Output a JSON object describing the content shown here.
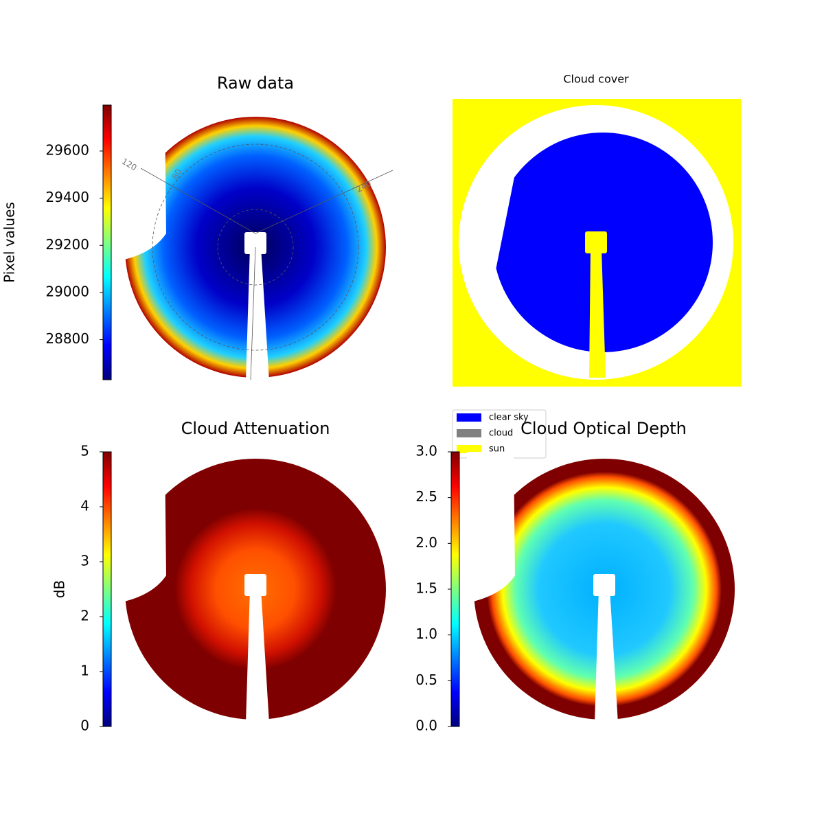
{
  "chart_data": [
    {
      "type": "image",
      "title": "Raw data",
      "colorbar_label": "Pixel values",
      "colormap": "jet",
      "clim": [
        28630,
        29795
      ],
      "cticks": [
        28800,
        29000,
        29200,
        29400,
        29600
      ],
      "annotations": [
        120,
        80,
        240
      ]
    },
    {
      "type": "image",
      "title": "Cloud cover",
      "legend": [
        {
          "name": "clear sky",
          "color": "#0000ff"
        },
        {
          "name": "cloud",
          "color": "#808080"
        },
        {
          "name": "sun",
          "color": "#ffff00"
        }
      ]
    },
    {
      "type": "image",
      "title": "Cloud Attenuation",
      "colorbar_label": "dB",
      "colormap": "jet",
      "clim": [
        0,
        5
      ],
      "cticks": [
        0,
        1,
        2,
        3,
        4,
        5
      ]
    },
    {
      "type": "image",
      "title": "Cloud Optical Depth",
      "colormap": "jet",
      "clim": [
        0,
        3
      ],
      "cticks": [
        {
          "value": 0,
          "label": "0.0"
        },
        0.5,
        {
          "value": 1,
          "label": "1.0"
        },
        1.5,
        {
          "value": 2,
          "label": "2.0"
        },
        2.5,
        {
          "value": 3,
          "label": "3.0"
        }
      ]
    }
  ]
}
